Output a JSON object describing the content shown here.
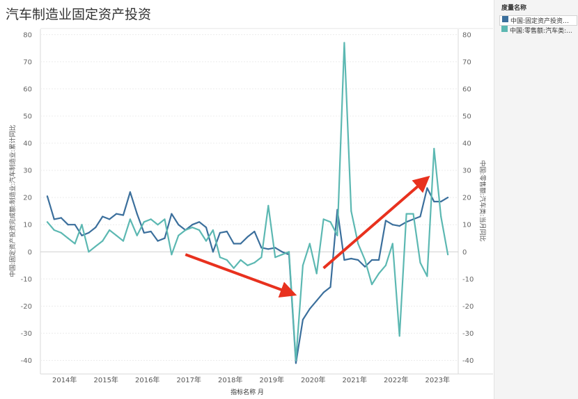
{
  "title": "汽车制造业固定资产投资",
  "legend": {
    "title": "度量名称",
    "items": [
      {
        "label": "中国:固定资产投资完成额:制造业:汽车制造业:累计同比",
        "display": "中国:固定资产投资完...",
        "color": "#3b6f9c"
      },
      {
        "label": "中国:零售额:汽车类:当月同比",
        "display": "中国:零售额:汽车类:...",
        "color": "#5cb8b2"
      }
    ]
  },
  "chart_data": {
    "type": "line",
    "x": [
      "2014-01",
      "2014-03",
      "2014-05",
      "2014-07",
      "2014-09",
      "2014-11",
      "2015-01",
      "2015-03",
      "2015-05",
      "2015-07",
      "2015-09",
      "2015-11",
      "2016-01",
      "2016-03",
      "2016-05",
      "2016-07",
      "2016-09",
      "2016-11",
      "2017-01",
      "2017-03",
      "2017-05",
      "2017-07",
      "2017-09",
      "2017-11",
      "2018-01",
      "2018-03",
      "2018-05",
      "2018-07",
      "2018-09",
      "2018-11",
      "2019-01",
      "2019-03",
      "2019-05",
      "2019-07",
      "2019-09",
      "2019-11",
      "2020-01",
      "2020-03",
      "2020-05",
      "2020-07",
      "2020-09",
      "2020-11",
      "2021-01",
      "2021-03",
      "2021-05",
      "2021-07",
      "2021-09",
      "2021-11",
      "2022-01",
      "2022-03",
      "2022-05",
      "2022-07",
      "2022-09",
      "2022-11",
      "2023-01",
      "2023-03",
      "2023-05",
      "2023-07",
      "2023-09"
    ],
    "series": [
      {
        "name": "中国:固定资产投资完成额:制造业:汽车制造业:累计同比",
        "axis": "left",
        "color": "#3b6f9c",
        "values": [
          20.5,
          12,
          12.5,
          10,
          10,
          6,
          7,
          9,
          13,
          12,
          14,
          13.5,
          22,
          14,
          7,
          7.5,
          4,
          5,
          14,
          10,
          8,
          10,
          11,
          9,
          0,
          7,
          7.5,
          3,
          3,
          5.5,
          7.5,
          1.5,
          1,
          1.5,
          0,
          -1,
          -41,
          -25,
          -21,
          -18,
          -15,
          -13,
          15.5,
          -3,
          -2.5,
          -3,
          -5.5,
          -3,
          -3,
          11.5,
          10,
          9.5,
          11,
          12,
          13,
          23.5,
          18.5,
          18.5,
          20
        ]
      },
      {
        "name": "中国:零售额:汽车类:当月同比",
        "axis": "right",
        "color": "#5cb8b2",
        "values": [
          11,
          8,
          7,
          5,
          3,
          10,
          0,
          2,
          4,
          8,
          6,
          4,
          12,
          6,
          11,
          12,
          10,
          12,
          -1,
          6,
          8,
          9,
          8,
          4,
          8,
          -2,
          -3,
          -6,
          -3,
          -5,
          -4,
          -2,
          17,
          -2,
          -1,
          0,
          -40,
          -5,
          3,
          -8,
          12,
          11,
          6,
          77,
          15,
          3,
          -3,
          -12,
          -8,
          -5,
          3,
          -31,
          14,
          14,
          -4,
          -9,
          38,
          13,
          -1
        ]
      }
    ],
    "ylim_left": [
      -45,
      82
    ],
    "yticks_left": [
      -40,
      -30,
      -20,
      -10,
      0,
      10,
      20,
      30,
      40,
      50,
      60,
      70,
      80
    ],
    "ylim_right": [
      -45,
      82
    ],
    "yticks_right": [
      -40,
      -30,
      -20,
      -10,
      0,
      10,
      20,
      30,
      40,
      50,
      60,
      70,
      80
    ],
    "xtick_labels": [
      "2014年",
      "2015年",
      "2016年",
      "2017年",
      "2018年",
      "2019年",
      "2020年",
      "2021年",
      "2022年",
      "2023年"
    ],
    "xlabel": "指标名称 月",
    "ylabel_left": "中国:固定资产投资完成额:制造业:汽车制造业:累计同比",
    "ylabel_right": "中国:零售额:汽车类:当月同比",
    "grid": true,
    "legend_position": "right",
    "annotations": [
      {
        "type": "arrow",
        "color": "#e8311e",
        "from": {
          "x": "2017-05",
          "y": -1
        },
        "to": {
          "x": "2019-11",
          "y": -15
        }
      },
      {
        "type": "arrow",
        "color": "#e8311e",
        "from": {
          "x": "2020-09",
          "y": -6
        },
        "to": {
          "x": "2023-02",
          "y": 26
        }
      }
    ]
  }
}
